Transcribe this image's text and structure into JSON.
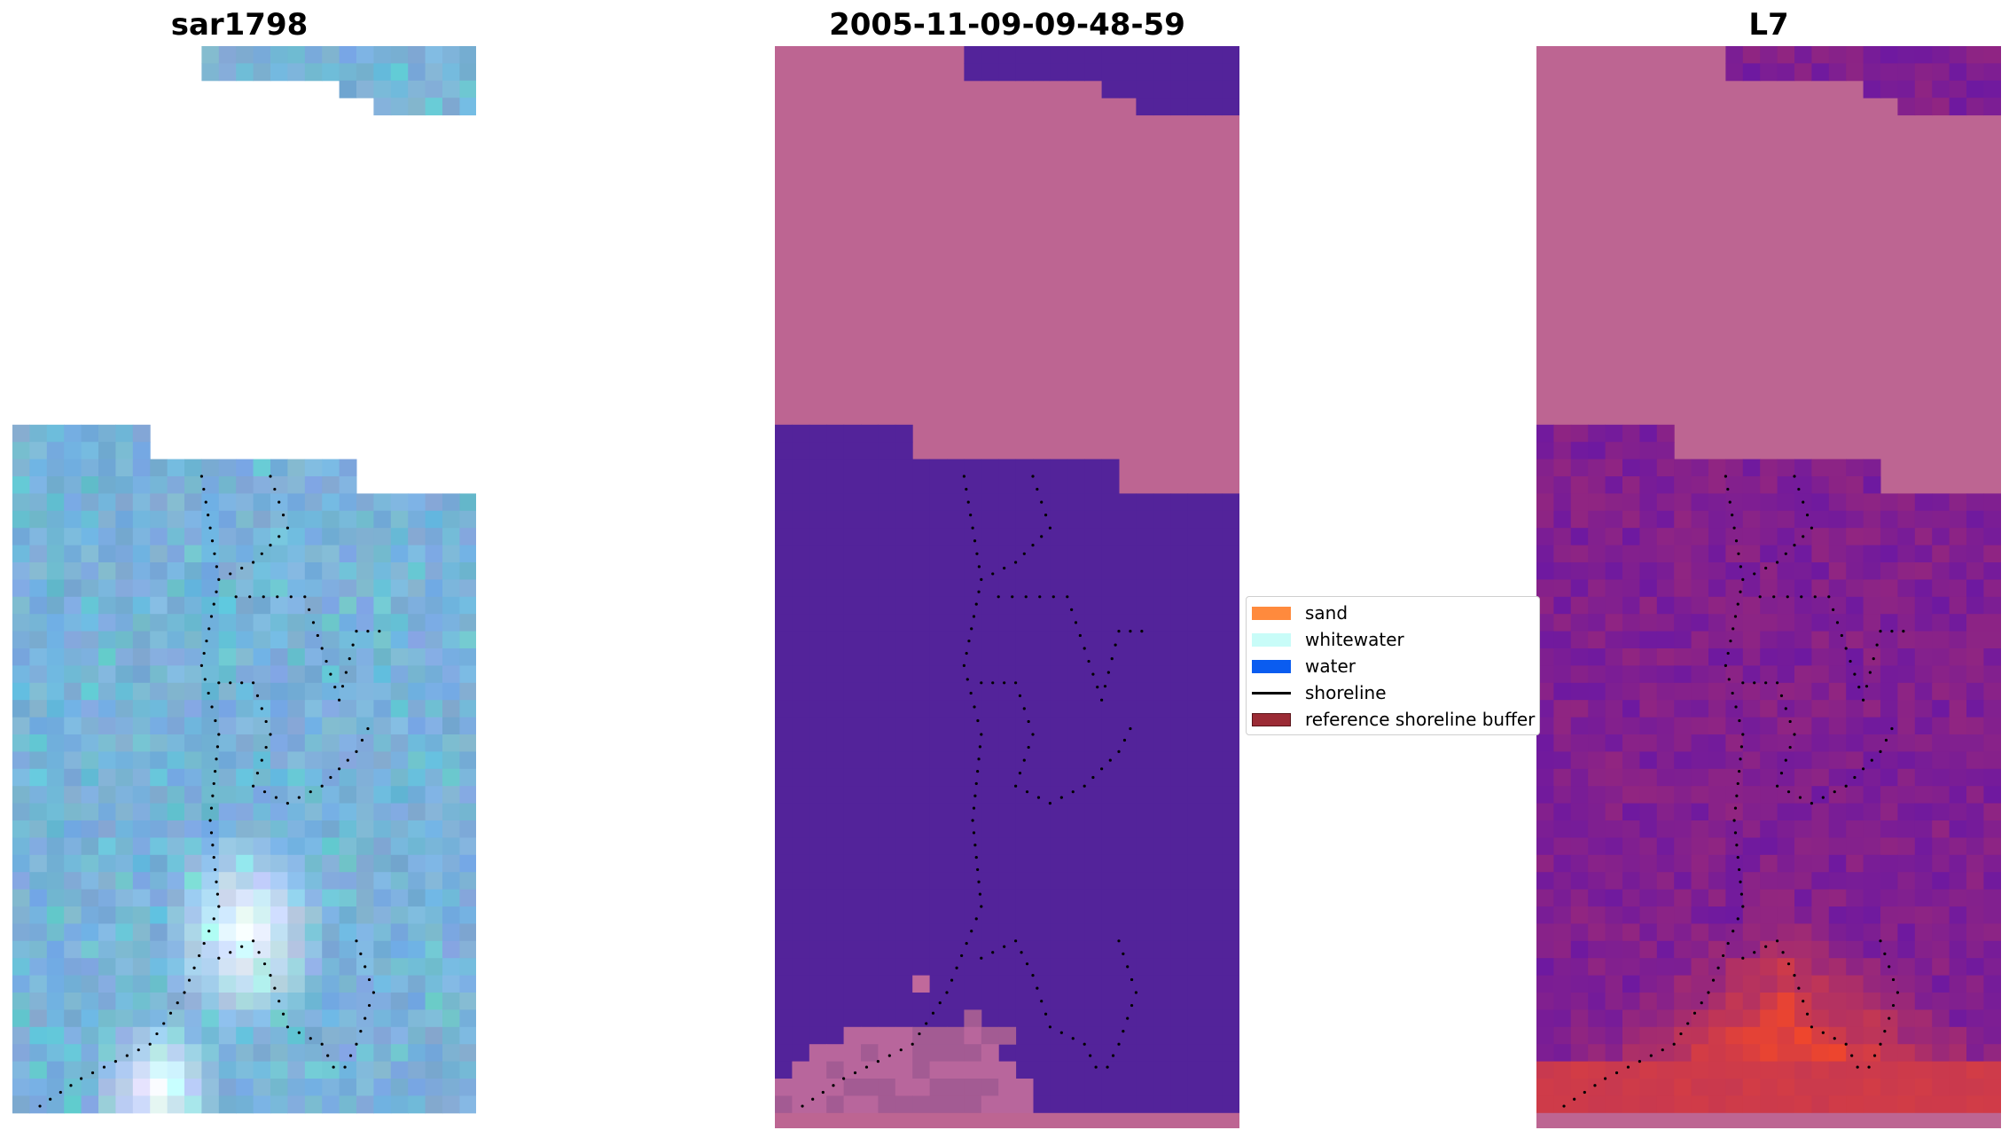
{
  "panels": [
    {
      "title": "sar1798"
    },
    {
      "title": "2005-11-09-09-48-59"
    },
    {
      "title": "L7"
    }
  ],
  "legend": {
    "items": [
      {
        "label": "sand",
        "color": "#ff8a3d",
        "kind": "patch"
      },
      {
        "label": "whitewater",
        "color": "#c8fcf8",
        "kind": "patch"
      },
      {
        "label": "water",
        "color": "#0a5cf0",
        "kind": "patch"
      },
      {
        "label": "shoreline",
        "color": "#000000",
        "kind": "line"
      },
      {
        "label": "reference shoreline buffer",
        "color": "#9b2b35",
        "kind": "patch"
      }
    ]
  },
  "colors": {
    "nodata": "#bd6592",
    "water_class": "#53239a",
    "sand_class": "#c0699b",
    "rgb_base": "#71aed6"
  }
}
